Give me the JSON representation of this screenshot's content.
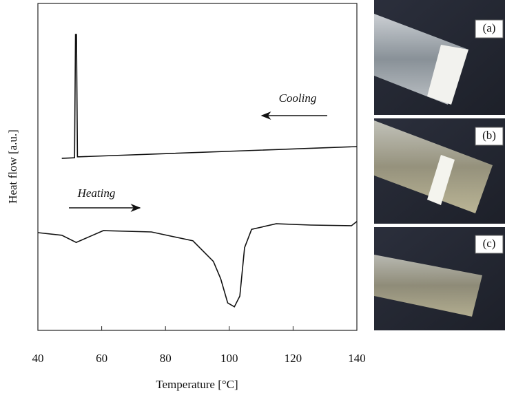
{
  "chart_data": {
    "type": "line",
    "xlabel": "Temperature [°C]",
    "ylabel": "Heat flow [a.u.]",
    "xlim": [
      40,
      140
    ],
    "xticks": [
      40,
      60,
      80,
      100,
      120,
      140
    ],
    "ylim": [
      0,
      100
    ],
    "series": [
      {
        "name": "Cooling",
        "color": "#111111",
        "x": [
          47.5,
          51.5,
          51.8,
          52.1,
          52.4,
          53,
          140
        ],
        "values": [
          52.6,
          52.8,
          90.5,
          90.5,
          53.1,
          53.1,
          56.2
        ]
      },
      {
        "name": "Heating",
        "color": "#111111",
        "x": [
          40,
          47.5,
          52,
          60.5,
          75.6,
          88.6,
          95,
          97.3,
          99.5,
          101.6,
          103.3,
          104.8,
          107,
          114.7,
          125.5,
          138.3,
          140
        ],
        "values": [
          29.9,
          29.1,
          26.9,
          30.5,
          30.1,
          27.4,
          21.1,
          15.8,
          8.4,
          7.2,
          10.5,
          25.3,
          30.9,
          32.6,
          32.2,
          32.0,
          33.3
        ]
      }
    ],
    "photo_labels": [
      "(a)",
      "(b)",
      "(c)"
    ]
  }
}
